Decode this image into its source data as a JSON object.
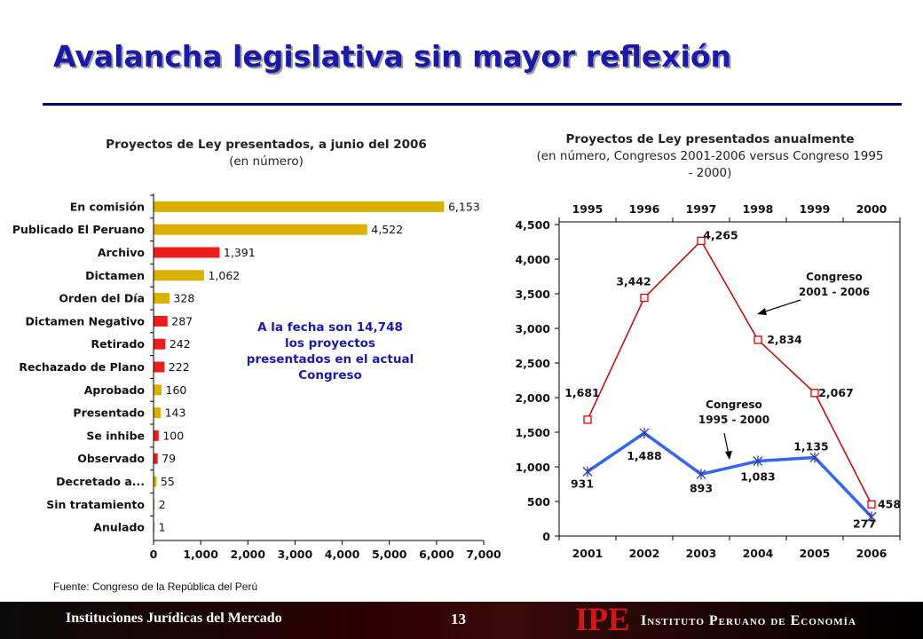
{
  "title": "Avalancha legislativa sin mayor reflexión",
  "source": "Fuente: Congreso de la República del Perú",
  "footer": {
    "left_text": "Instituciones Jurídicas del Mercado",
    "page_number": "13",
    "logo": "IPE",
    "institution": "Instituto Peruano de Economía"
  },
  "colors": {
    "title": "#1a1aa6",
    "bar_gold": "#dcb000",
    "bar_red": "#ee1c1c",
    "line_red": "#cc0000",
    "line_blue": "#3366ee",
    "annotation": "#1a1aa6"
  },
  "chart_data": [
    {
      "type": "bar",
      "orientation": "horizontal",
      "title": "Proyectos de Ley presentados, a junio del 2006",
      "subtitle": "(en número)",
      "categories": [
        "En comisión",
        "Publicado El Peruano",
        "Archivo",
        "Dictamen",
        "Orden del Día",
        "Dictamen Negativo",
        "Retirado",
        "Rechazado de Plano",
        "Aprobado",
        "Presentado",
        "Se inhibe",
        "Observado",
        "Decretado a...",
        "Sin tratamiento",
        "Anulado"
      ],
      "values": [
        6153,
        4522,
        1391,
        1062,
        328,
        287,
        242,
        222,
        160,
        143,
        100,
        79,
        55,
        2,
        1
      ],
      "value_labels": [
        "6,153",
        "4,522",
        "1,391",
        "1,062",
        "328",
        "287",
        "242",
        "222",
        "160",
        "143",
        "100",
        "79",
        "55",
        "2",
        "1"
      ],
      "bar_colors": [
        "#dcb000",
        "#dcb000",
        "#ee1c1c",
        "#dcb000",
        "#dcb000",
        "#ee1c1c",
        "#ee1c1c",
        "#ee1c1c",
        "#dcb000",
        "#dcb000",
        "#ee1c1c",
        "#ee1c1c",
        "#dcb000",
        "#dcb000",
        "#dcb000"
      ],
      "xlim": [
        0,
        7000
      ],
      "xticks": [
        0,
        1000,
        2000,
        3000,
        4000,
        5000,
        6000,
        7000
      ],
      "xtick_labels": [
        "0",
        "1,000",
        "2,000",
        "3,000",
        "4,000",
        "5,000",
        "6,000",
        "7,000"
      ],
      "annotation": "A la fecha son 14,748 los proyectos presentados en el actual Congreso"
    },
    {
      "type": "line",
      "title": "Proyectos de Ley presentados anualmente",
      "subtitle": "(en número, Congresos 2001-2006  versus Congreso 1995 - 2000)",
      "x_bottom": [
        "2001",
        "2002",
        "2003",
        "2004",
        "2005",
        "2006"
      ],
      "x_top": [
        "1995",
        "1996",
        "1997",
        "1998",
        "1999",
        "2000"
      ],
      "ylim": [
        0,
        4500
      ],
      "yticks": [
        0,
        500,
        1000,
        1500,
        2000,
        2500,
        3000,
        3500,
        4000,
        4500
      ],
      "ytick_labels": [
        "0",
        "500",
        "1,000",
        "1,500",
        "2,000",
        "2,500",
        "3,000",
        "3,500",
        "4,000",
        "4,500"
      ],
      "series": [
        {
          "name": "Congreso 2001 - 2006",
          "values": [
            1681,
            3442,
            4265,
            2834,
            2067,
            458
          ],
          "labels": [
            "1,681",
            "3,442",
            "4,265",
            "2,834",
            "2,067",
            "458"
          ],
          "color": "#cc0000",
          "marker": "square"
        },
        {
          "name": "Congreso 1995 - 2000",
          "values": [
            931,
            1488,
            893,
            1083,
            1135,
            277
          ],
          "labels": [
            "931",
            "1,488",
            "893",
            "1,083",
            "1,135",
            "277"
          ],
          "color": "#3366ee",
          "marker": "star"
        }
      ]
    }
  ]
}
